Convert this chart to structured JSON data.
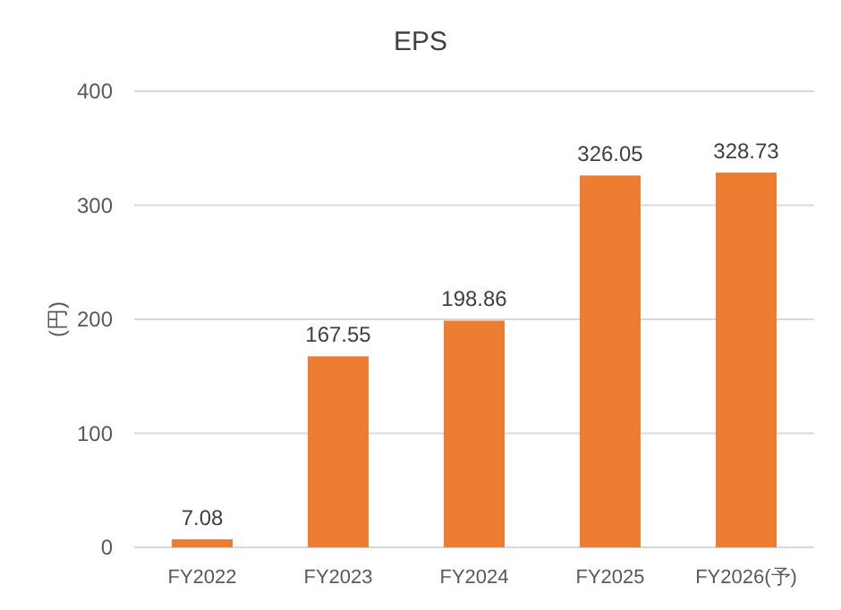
{
  "chart_data": {
    "type": "bar",
    "title": "EPS",
    "ylabel": "(円)",
    "categories": [
      "FY2022",
      "FY2023",
      "FY2024",
      "FY2025",
      "FY2026(予)"
    ],
    "values": [
      7.08,
      167.55,
      198.86,
      326.05,
      328.73
    ],
    "color": "#ed7d31",
    "ylim": [
      0,
      400
    ],
    "yticks": [
      0,
      100,
      200,
      300,
      400
    ],
    "grid": "y",
    "data_labels": true
  }
}
